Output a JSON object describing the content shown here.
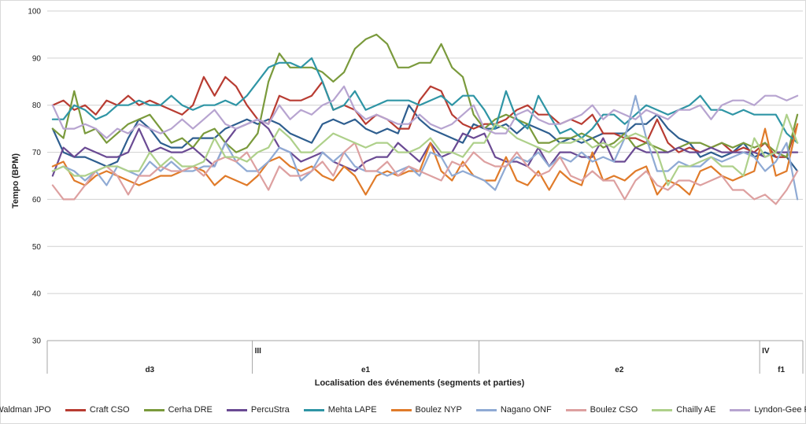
{
  "chart_data": {
    "type": "line",
    "ylabel": "Tempo (BPM)",
    "xlabel": "Localisation des événements (segments et parties)",
    "ylim": [
      30,
      100
    ],
    "yticks": [
      30,
      40,
      50,
      60,
      70,
      80,
      90,
      100
    ],
    "grid": "horizontal",
    "legend_position": "bottom",
    "n_points": 70,
    "parts": [
      {
        "label": "III",
        "start": 19
      },
      {
        "label": "IV",
        "start": 66
      }
    ],
    "segments": [
      {
        "label": "d3",
        "start": 0,
        "end": 19
      },
      {
        "label": "e1",
        "start": 19,
        "end": 40
      },
      {
        "label": "e2",
        "start": 40,
        "end": 66
      },
      {
        "label": "f1",
        "start": 66,
        "end": 70
      }
    ],
    "series": [
      {
        "name": "Waldman JPO",
        "color": "#2e5e8f",
        "values": [
          75,
          70,
          69,
          69,
          68,
          67,
          68,
          73,
          77,
          75,
          72,
          71,
          71,
          73,
          73,
          73,
          75,
          76,
          77,
          76,
          77,
          76,
          74,
          73,
          72,
          76,
          77,
          76,
          77,
          75,
          74,
          75,
          74,
          80,
          77,
          75,
          74,
          73,
          72,
          76,
          75,
          75,
          76,
          74,
          76,
          75,
          74,
          72,
          73,
          72,
          73,
          74,
          74,
          74,
          76,
          76,
          78,
          75,
          73,
          72,
          69,
          70,
          69,
          70,
          72,
          69,
          70,
          69,
          69,
          66
        ]
      },
      {
        "name": "Craft CSO",
        "color": "#b83c32",
        "values": [
          80,
          81,
          79,
          80,
          78,
          81,
          80,
          82,
          80,
          81,
          80,
          79,
          78,
          80,
          86,
          82,
          86,
          84,
          80,
          77,
          76,
          82,
          81,
          81,
          82,
          85,
          79,
          80,
          79,
          76,
          78,
          77,
          75,
          75,
          81,
          84,
          83,
          78,
          76,
          75,
          76,
          76,
          77,
          79,
          80,
          78,
          78,
          76,
          77,
          76,
          78,
          74,
          74,
          73,
          73,
          72,
          77,
          72,
          70,
          71,
          70,
          71,
          72,
          70,
          71,
          70,
          72,
          69,
          69,
          76
        ]
      },
      {
        "name": "Cerha DRE",
        "color": "#7a9a3c",
        "values": [
          75,
          73,
          83,
          74,
          75,
          72,
          74,
          76,
          77,
          78,
          75,
          72,
          73,
          71,
          74,
          75,
          72,
          70,
          71,
          74,
          85,
          91,
          88,
          88,
          88,
          87,
          85,
          87,
          92,
          94,
          95,
          93,
          88,
          88,
          89,
          89,
          93,
          88,
          86,
          78,
          75,
          77,
          78,
          77,
          76,
          72,
          72,
          73,
          73,
          74,
          73,
          71,
          72,
          74,
          71,
          72,
          71,
          70,
          71,
          72,
          72,
          71,
          72,
          71,
          72,
          71,
          72,
          70,
          69,
          78
        ]
      },
      {
        "name": "PercuStra",
        "color": "#6a4a93",
        "values": [
          65,
          71,
          69,
          71,
          70,
          69,
          69,
          70,
          75,
          70,
          71,
          70,
          70,
          71,
          69,
          67,
          72,
          75,
          76,
          77,
          75,
          71,
          70,
          68,
          69,
          70,
          68,
          67,
          66,
          68,
          69,
          69,
          72,
          70,
          68,
          72,
          69,
          70,
          74,
          73,
          74,
          69,
          68,
          68,
          67,
          71,
          67,
          70,
          70,
          69,
          69,
          73,
          68,
          68,
          71,
          70,
          70,
          70,
          71,
          70,
          70,
          71,
          70,
          70,
          70,
          70,
          69,
          70,
          70,
          70
        ]
      },
      {
        "name": "Mehta LAPE",
        "color": "#2f95a5",
        "values": [
          77,
          77,
          80,
          79,
          77,
          78,
          80,
          80,
          81,
          80,
          80,
          82,
          80,
          79,
          80,
          80,
          81,
          80,
          82,
          85,
          88,
          89,
          89,
          88,
          90,
          85,
          79,
          80,
          83,
          79,
          80,
          81,
          81,
          81,
          80,
          81,
          82,
          80,
          82,
          82,
          79,
          75,
          83,
          77,
          75,
          82,
          78,
          74,
          75,
          73,
          75,
          78,
          78,
          76,
          78,
          80,
          79,
          78,
          79,
          80,
          82,
          79,
          79,
          78,
          79,
          78,
          78,
          78,
          74,
          72
        ]
      },
      {
        "name": "Boulez NYP",
        "color": "#e07b2a",
        "values": [
          67,
          68,
          64,
          63,
          65,
          66,
          65,
          64,
          63,
          64,
          65,
          65,
          66,
          67,
          66,
          63,
          65,
          64,
          63,
          65,
          68,
          69,
          67,
          66,
          67,
          65,
          64,
          67,
          65,
          61,
          65,
          66,
          65,
          66,
          66,
          72,
          66,
          64,
          68,
          65,
          64,
          64,
          69,
          64,
          63,
          66,
          62,
          66,
          64,
          63,
          70,
          64,
          65,
          64,
          66,
          67,
          61,
          64,
          63,
          61,
          66,
          67,
          65,
          64,
          65,
          66,
          75,
          65,
          66,
          76
        ]
      },
      {
        "name": "Nagano ONF",
        "color": "#8faad4",
        "values": [
          66,
          67,
          66,
          64,
          66,
          63,
          67,
          66,
          65,
          68,
          66,
          68,
          66,
          66,
          67,
          67,
          72,
          68,
          66,
          66,
          68,
          71,
          70,
          64,
          66,
          70,
          68,
          70,
          67,
          66,
          66,
          65,
          66,
          67,
          65,
          70,
          69,
          65,
          66,
          65,
          64,
          62,
          67,
          69,
          68,
          70,
          67,
          69,
          68,
          70,
          68,
          69,
          68,
          73,
          82,
          73,
          66,
          66,
          68,
          67,
          67,
          69,
          68,
          69,
          70,
          69,
          66,
          68,
          72,
          60
        ]
      },
      {
        "name": "Boulez CSO",
        "color": "#dda0a0",
        "values": [
          63,
          60,
          60,
          63,
          66,
          67,
          65,
          61,
          65,
          65,
          67,
          66,
          66,
          67,
          65,
          68,
          69,
          68,
          70,
          66,
          62,
          67,
          65,
          65,
          66,
          68,
          65,
          70,
          72,
          66,
          66,
          68,
          65,
          67,
          66,
          65,
          64,
          68,
          67,
          70,
          68,
          67,
          67,
          70,
          67,
          65,
          66,
          69,
          65,
          64,
          66,
          64,
          64,
          60,
          64,
          66,
          63,
          62,
          64,
          64,
          63,
          64,
          65,
          62,
          62,
          60,
          61,
          59,
          62,
          66
        ]
      },
      {
        "name": "Chailly AE",
        "color": "#aed08a",
        "values": [
          66,
          67,
          65,
          65,
          66,
          67,
          67,
          66,
          66,
          70,
          67,
          69,
          67,
          67,
          68,
          73,
          69,
          69,
          68,
          70,
          71,
          75,
          73,
          70,
          70,
          72,
          74,
          73,
          72,
          71,
          72,
          72,
          70,
          70,
          71,
          73,
          70,
          70,
          69,
          72,
          72,
          76,
          75,
          73,
          72,
          71,
          70,
          72,
          72,
          73,
          71,
          72,
          71,
          73,
          74,
          73,
          70,
          63,
          67,
          67,
          68,
          69,
          67,
          67,
          65,
          73,
          69,
          70,
          78,
          72
        ]
      },
      {
        "name": "Lyndon-Gee PNRSO",
        "color": "#b7a4d0",
        "values": [
          80,
          75,
          75,
          76,
          75,
          73,
          75,
          74,
          76,
          75,
          74,
          75,
          77,
          75,
          77,
          79,
          76,
          75,
          76,
          77,
          76,
          80,
          77,
          79,
          78,
          80,
          81,
          84,
          79,
          77,
          78,
          77,
          76,
          76,
          78,
          76,
          75,
          76,
          78,
          80,
          75,
          74,
          74,
          78,
          79,
          77,
          76,
          76,
          77,
          78,
          80,
          77,
          79,
          78,
          77,
          79,
          78,
          77,
          79,
          79,
          80,
          77,
          80,
          81,
          81,
          80,
          82,
          82,
          81,
          82
        ]
      }
    ]
  }
}
